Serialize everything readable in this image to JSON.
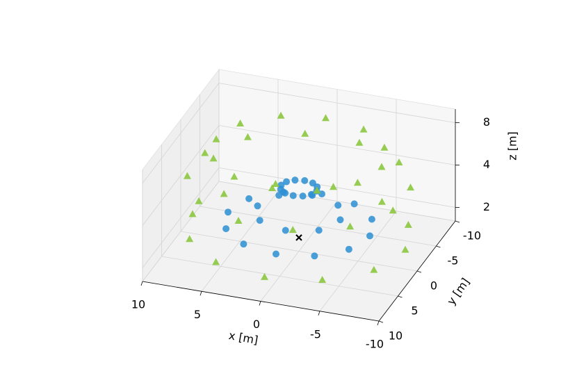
{
  "chart_data": {
    "type": "scatter3d",
    "xlabel": "x [m]",
    "ylabel": "y [m]",
    "zlabel": "z [m]",
    "xlim": [
      -10,
      10
    ],
    "ylim": [
      -10,
      10
    ],
    "zlim": [
      1.6,
      10
    ],
    "zscale": "log",
    "xticks": [
      -10,
      -5,
      0,
      5,
      10
    ],
    "yticks": [
      -10,
      -5,
      0,
      5,
      10
    ],
    "zticks": [
      2,
      4,
      8
    ],
    "grid": true,
    "series": [
      {
        "marker": "o",
        "color": "#2b8fd4",
        "x": [
          1.5,
          1.3,
          0.75,
          0,
          -0.75,
          -1.3,
          -1.5,
          -1.3,
          -0.75,
          0,
          0.75,
          1.3,
          3.5,
          2.5,
          0,
          -2.5,
          -3.5,
          -2.5,
          0,
          2.5,
          6,
          5.2,
          3,
          0,
          -3,
          -5.2,
          -6,
          -5.2,
          -3,
          0,
          3,
          5.2
        ],
        "y": [
          0,
          0.75,
          1.3,
          1.5,
          1.3,
          0.75,
          0,
          -0.75,
          -1.3,
          -1.5,
          -1.3,
          -0.75,
          0,
          2.5,
          3.5,
          2.5,
          0,
          -2.5,
          -3.5,
          -2.5,
          0,
          3,
          5.2,
          6,
          5.2,
          3,
          0,
          -3,
          -5.2,
          -6,
          -5.2,
          -3
        ],
        "z": [
          4.5,
          4.5,
          4.5,
          4.5,
          4.5,
          4.5,
          4.5,
          4.5,
          4.5,
          4.5,
          4.5,
          4.5,
          3,
          3,
          3,
          3,
          3,
          3,
          3,
          3,
          2.5,
          2.5,
          2.5,
          2.5,
          2.5,
          2.5,
          2.5,
          2.5,
          2.5,
          2.5,
          2.5,
          2.5
        ]
      },
      {
        "marker": "^",
        "color": "#8cc63f",
        "x": [
          9,
          7.8,
          4.5,
          0,
          -4.5,
          -7.8,
          -9,
          -7.8,
          -4.5,
          0,
          4.5,
          7.8,
          8.7,
          6.4,
          2.3,
          -2.3,
          -6.4,
          -8.7,
          -8.7,
          -6.4,
          -2.3,
          2.3,
          6.4,
          8.7,
          7,
          6.1,
          3.5,
          0,
          -3.5,
          -6.1,
          -7,
          -6.1,
          -3.5,
          0,
          3.5,
          6.1
        ],
        "y": [
          0,
          4.5,
          7.8,
          9,
          7.8,
          4.5,
          0,
          -4.5,
          -7.8,
          -9,
          -7.8,
          -4.5,
          2.3,
          6.4,
          8.7,
          8.7,
          6.4,
          2.3,
          -2.3,
          -6.4,
          -8.7,
          -8.7,
          -6.4,
          -2.3,
          0,
          3.5,
          6.1,
          7,
          6.1,
          3.5,
          0,
          -3.5,
          -6.1,
          -7,
          -6.1,
          -3.5
        ],
        "z": [
          2.2,
          2.2,
          2.2,
          2.2,
          2.2,
          2.2,
          2.2,
          2.2,
          2.2,
          2.2,
          2.2,
          2.2,
          5,
          5,
          5,
          5,
          5,
          5,
          5,
          5,
          5,
          5,
          5,
          5,
          8,
          8,
          8,
          8,
          8,
          8,
          8,
          8,
          8,
          8,
          8,
          8
        ]
      },
      {
        "marker": "x",
        "color": "#000000",
        "x": [
          0
        ],
        "y": [
          0
        ],
        "z": [
          2
        ]
      }
    ]
  }
}
